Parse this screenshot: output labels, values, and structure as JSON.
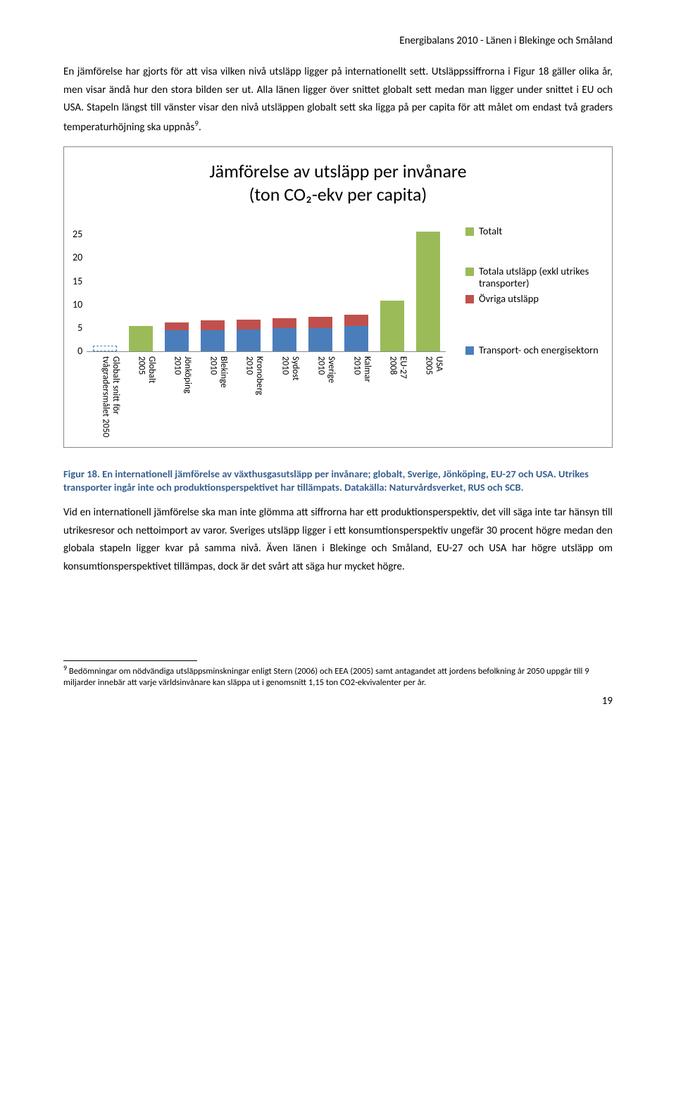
{
  "header": "Energibalans 2010 - Länen i Blekinge och Småland",
  "para1": "En jämförelse har gjorts för att visa vilken nivå utsläpp ligger på internationellt sett. Utsläppssiffrorna i Figur 18 gäller olika år, men visar ändå hur den stora bilden ser ut. Alla länen ligger över snittet globalt sett medan man ligger under snittet i EU och USA. Stapeln längst till vänster visar den nivå utsläppen globalt sett ska ligga på per capita för att målet om endast två graders temperaturhöjning ska uppnås",
  "para1_sup": "9",
  "para1_tail": ".",
  "chart": {
    "title_l1": "Jämförelse av utsläpp per invånare",
    "title_l2": "(ton CO₂-ekv per capita)",
    "ymax": 25,
    "yticks": [
      "25",
      "20",
      "15",
      "10",
      "5",
      "0"
    ],
    "categories": [
      "Globalt snitt för\ntvågradersmålet 2050",
      "Globalt\n2005",
      "Jönköping\n2010",
      "Blekinge\n2010",
      "Kronoberg\n2010",
      "Sydost\n2010",
      "Sverige\n2010",
      "Kalmar\n2010",
      "EU-27\n2008",
      "USA\n2005"
    ],
    "series": [
      {
        "type": "dashed",
        "height": 1.15,
        "color": "#4a7ebb"
      },
      {
        "type": "single",
        "height": 5.0,
        "color": "#9bbb59"
      },
      {
        "type": "stacked",
        "blue": 4.2,
        "red": 1.6
      },
      {
        "type": "stacked",
        "blue": 4.2,
        "red": 1.9
      },
      {
        "type": "stacked",
        "blue": 4.3,
        "red": 2.0
      },
      {
        "type": "stacked",
        "blue": 4.6,
        "red": 2.0
      },
      {
        "type": "stacked",
        "blue": 4.6,
        "red": 2.3
      },
      {
        "type": "stacked",
        "blue": 5.0,
        "red": 2.2
      },
      {
        "type": "single",
        "height": 10.0,
        "color": "#9bbb59"
      },
      {
        "type": "single",
        "height": 23.6,
        "color": "#9bbb59"
      }
    ],
    "colors": {
      "blue": "#4a7ebb",
      "red": "#c0504d",
      "green": "#9bbb59"
    },
    "legend": [
      {
        "color": "#9bbb59",
        "text": "Totalt"
      },
      {
        "color": "#9bbb59",
        "text": "Totala utsläpp (exkl utrikes transporter)"
      },
      {
        "color": "#c0504d",
        "text": "Övriga utsläpp"
      },
      {
        "color": "#4a7ebb",
        "text": "Transport- och energisektorn"
      }
    ]
  },
  "figcap": "Figur 18. En internationell jämförelse av växthusgasutsläpp per invånare; globalt, Sverige, Jönköping, EU-27 och USA. Utrikes transporter ingår inte och produktionsperspektivet har tillämpats. Datakälla: Naturvårdsverket, RUS och SCB.",
  "para2": "Vid en internationell jämförelse ska man inte glömma att siffrorna har ett produktionsperspektiv, det vill säga inte tar hänsyn till utrikesresor och nettoimport av varor. Sveriges utsläpp ligger i ett konsumtionsperspektiv ungefär 30 procent högre medan den globala stapeln ligger kvar på samma nivå. Även länen i Blekinge och Småland, EU-27 och USA har högre utsläpp om konsumtionsperspektivet tillämpas, dock är det svårt att säga hur mycket högre.",
  "footnote_num": "9",
  "footnote": " Bedömningar om nödvändiga utsläppsminskningar enligt Stern (2006) och EEA (2005) samt antagandet att jordens befolkning år 2050 uppgår till 9 miljarder innebär att varje världsinvånare kan släppa ut i genomsnitt 1,15 ton CO2-ekvivalenter per år.",
  "pagenum": "19"
}
